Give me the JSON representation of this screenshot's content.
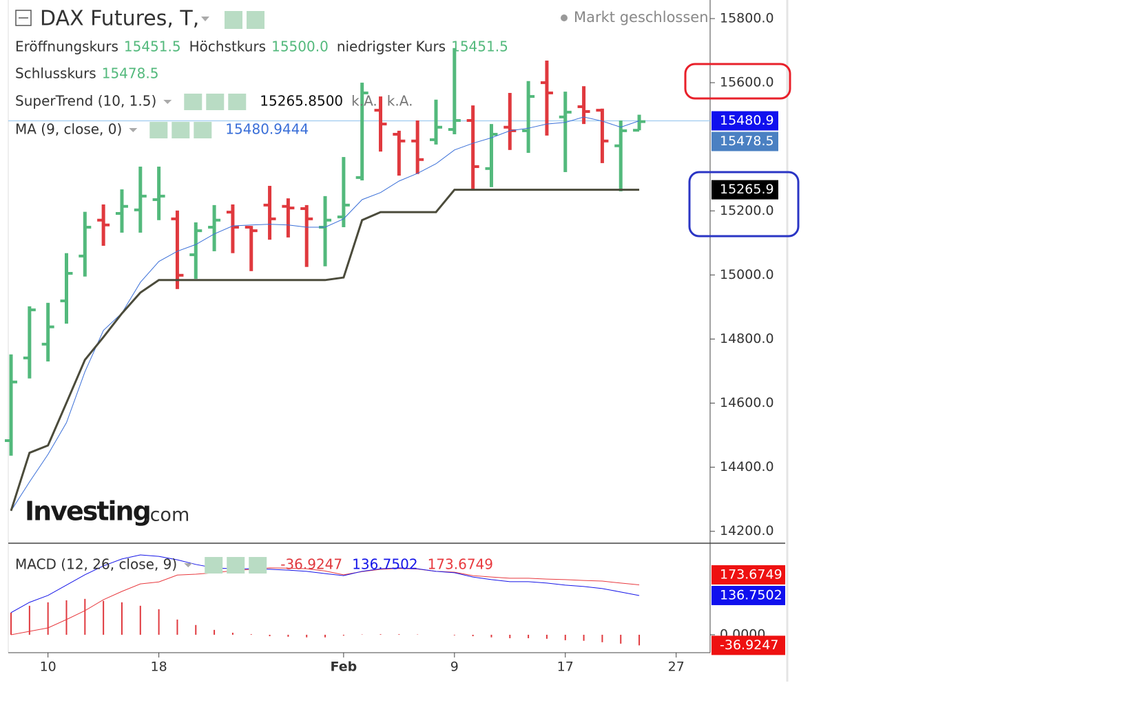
{
  "header": {
    "title": "DAX Futures, T,",
    "status": "Markt geschlossen",
    "watermark": "Investing",
    "watermark_suffix": ".com"
  },
  "chart_data": [
    {
      "type": "ohlc",
      "x": [
        0,
        1,
        2,
        3,
        4,
        5,
        6,
        7,
        8,
        9,
        10,
        11,
        12,
        13,
        14,
        15,
        16,
        17,
        18,
        19,
        20,
        21,
        22,
        23,
        24,
        25,
        26,
        27,
        28,
        29,
        30,
        31,
        32,
        33,
        34
      ],
      "open": [
        14483,
        14741,
        14784,
        14919,
        15059,
        15171,
        15192,
        15203,
        15235,
        15175,
        15063,
        15149,
        15196,
        15149,
        15218,
        15214,
        15207,
        15149,
        15181,
        15304,
        15514,
        15439,
        15418,
        15422,
        15454,
        15482,
        15332,
        15461,
        15450,
        15600,
        15493,
        15525,
        15514,
        15403,
        15451.5
      ],
      "high": [
        14752,
        14902,
        14913,
        15068,
        15197,
        15220,
        15267,
        15338,
        15338,
        15201,
        15164,
        15218,
        15220,
        15153,
        15278,
        15239,
        15218,
        15246,
        15368,
        15600,
        15557,
        15450,
        15482,
        15547,
        15708,
        15529,
        15471,
        15568,
        15605,
        15669,
        15572,
        15589,
        15519,
        15482,
        15500
      ],
      "low": [
        14436,
        14677,
        14730,
        14848,
        14995,
        15091,
        15132,
        15132,
        15171,
        14956,
        14988,
        15074,
        15068,
        15012,
        15110,
        15117,
        15025,
        15027,
        15149,
        15295,
        15385,
        15310,
        15315,
        15407,
        15439,
        15267,
        15274,
        15390,
        15381,
        15435,
        15321,
        15471,
        15349,
        15261,
        15451.5
      ],
      "close": [
        14666,
        14891,
        14838,
        15005,
        15149,
        15156,
        15214,
        15246,
        15246,
        14999,
        15138,
        15171,
        15149,
        15138,
        15175,
        15209,
        15175,
        15171,
        15218,
        15568,
        15471,
        15418,
        15360,
        15461,
        15482,
        15338,
        15439,
        15450,
        15557,
        15568,
        15508,
        15510,
        15418,
        15450,
        15478.5
      ],
      "up_color": "#53b97c",
      "down_color": "#e0393e",
      "ohlc_legend": [
        {
          "name": "Eröffnungskurs"
        },
        {
          "name": "Höchstkurs",
          "value_label": "15500.0"
        },
        {
          "name": "niedrigster Kurs"
        },
        {
          "name": "Schlusskurs"
        }
      ],
      "series": [
        {
          "name": "SuperTrend (10, 1.5)",
          "color": "#4b4b3b",
          "legend_value": "15265.8500",
          "legend_extra": [
            "k.A.",
            "k.A."
          ],
          "last_label": "15265.9",
          "values": [
            14264,
            14445,
            14468,
            14601,
            14735,
            14806,
            14880,
            14945,
            14984,
            14984,
            14984,
            14984,
            14984,
            14984,
            14984,
            14984,
            14984,
            14984,
            14992,
            15171,
            15196,
            15196,
            15196,
            15196,
            15265.85,
            15265.85,
            15265.85,
            15265.85,
            15265.85,
            15265.85,
            15265.85,
            15265.85,
            15265.85,
            15265.85,
            15265.85
          ]
        },
        {
          "name": "MA (9, close, 0)",
          "color": "#3a6fd8",
          "last_label": "15480.9",
          "values": [
            14264,
            14354,
            14440,
            14539,
            14698,
            14827,
            14881,
            14977,
            15042,
            15074,
            15095,
            15128,
            15153,
            15156,
            15158,
            15156,
            15149,
            15149,
            15175,
            15235,
            15257,
            15293,
            15317,
            15347,
            15390,
            15411,
            15428,
            15450,
            15458,
            15471,
            15476,
            15493,
            15480,
            15461,
            15480.9444
          ]
        }
      ],
      "xlim": [
        -0.15,
        37.8
      ],
      "ylim": [
        14165,
        15858
      ],
      "yticks": [
        {
          "value": 14200,
          "label": "14200.0"
        },
        {
          "value": 14400,
          "label": "14400.0"
        },
        {
          "value": 14600,
          "label": "14600.0"
        },
        {
          "value": 14800,
          "label": "14800.0"
        },
        {
          "value": 15000,
          "label": "15000.0"
        },
        {
          "value": 15200,
          "label": "15200.0"
        },
        {
          "value": 15600,
          "label": "15600.0"
        },
        {
          "value": 15800,
          "label": "15800.0"
        }
      ]
    },
    {
      "type": "macd",
      "title": "MACD (12, 26, close, 9)",
      "x": [
        0,
        1,
        2,
        3,
        4,
        5,
        6,
        7,
        8,
        9,
        10,
        11,
        12,
        13,
        14,
        15,
        16,
        17,
        18,
        19,
        20,
        21,
        22,
        23,
        24,
        25,
        26,
        27,
        28,
        29,
        30,
        31,
        32,
        33,
        34
      ],
      "histogram": {
        "color": "#e0393e",
        "values": [
          77,
          101,
          113,
          120,
          125,
          118,
          113,
          101,
          89,
          53,
          34,
          17,
          7,
          2,
          -5,
          -7,
          -9,
          -9,
          -3,
          1,
          2,
          2,
          1,
          0,
          -2,
          -5,
          -9,
          -12,
          -12,
          -14,
          -19,
          -21,
          -26,
          -31,
          -36.9247
        ]
      },
      "macd": {
        "color": "#1515e8",
        "values": [
          77,
          113,
          137,
          173,
          209,
          240,
          264,
          278,
          273,
          261,
          245,
          233,
          230,
          230,
          228,
          225,
          221,
          213,
          206,
          221,
          230,
          233,
          230,
          221,
          216,
          201,
          192,
          185,
          185,
          180,
          173,
          168,
          161,
          149,
          136.7502
        ]
      },
      "signal": {
        "color": "#e8393e",
        "values": [
          0,
          12,
          24,
          53,
          84,
          122,
          151,
          177,
          184,
          208,
          211,
          216,
          223,
          228,
          233,
          232,
          230,
          222,
          209,
          220,
          228,
          231,
          229,
          221,
          218,
          206,
          201,
          197,
          197,
          194,
          192,
          189,
          187,
          180,
          173.6749
        ]
      },
      "xlim": [
        -0.15,
        37.8
      ],
      "ylim": [
        -62.4,
        316.5
      ],
      "yticks": [
        {
          "value": 0,
          "label": "0.0000"
        }
      ],
      "xticks": [
        {
          "value": 2,
          "label": "10"
        },
        {
          "value": 8,
          "label": "18"
        },
        {
          "value": 18,
          "label": "Feb"
        },
        {
          "value": 24,
          "label": "9"
        },
        {
          "value": 30,
          "label": "17"
        },
        {
          "value": 36,
          "label": "27"
        }
      ]
    }
  ]
}
